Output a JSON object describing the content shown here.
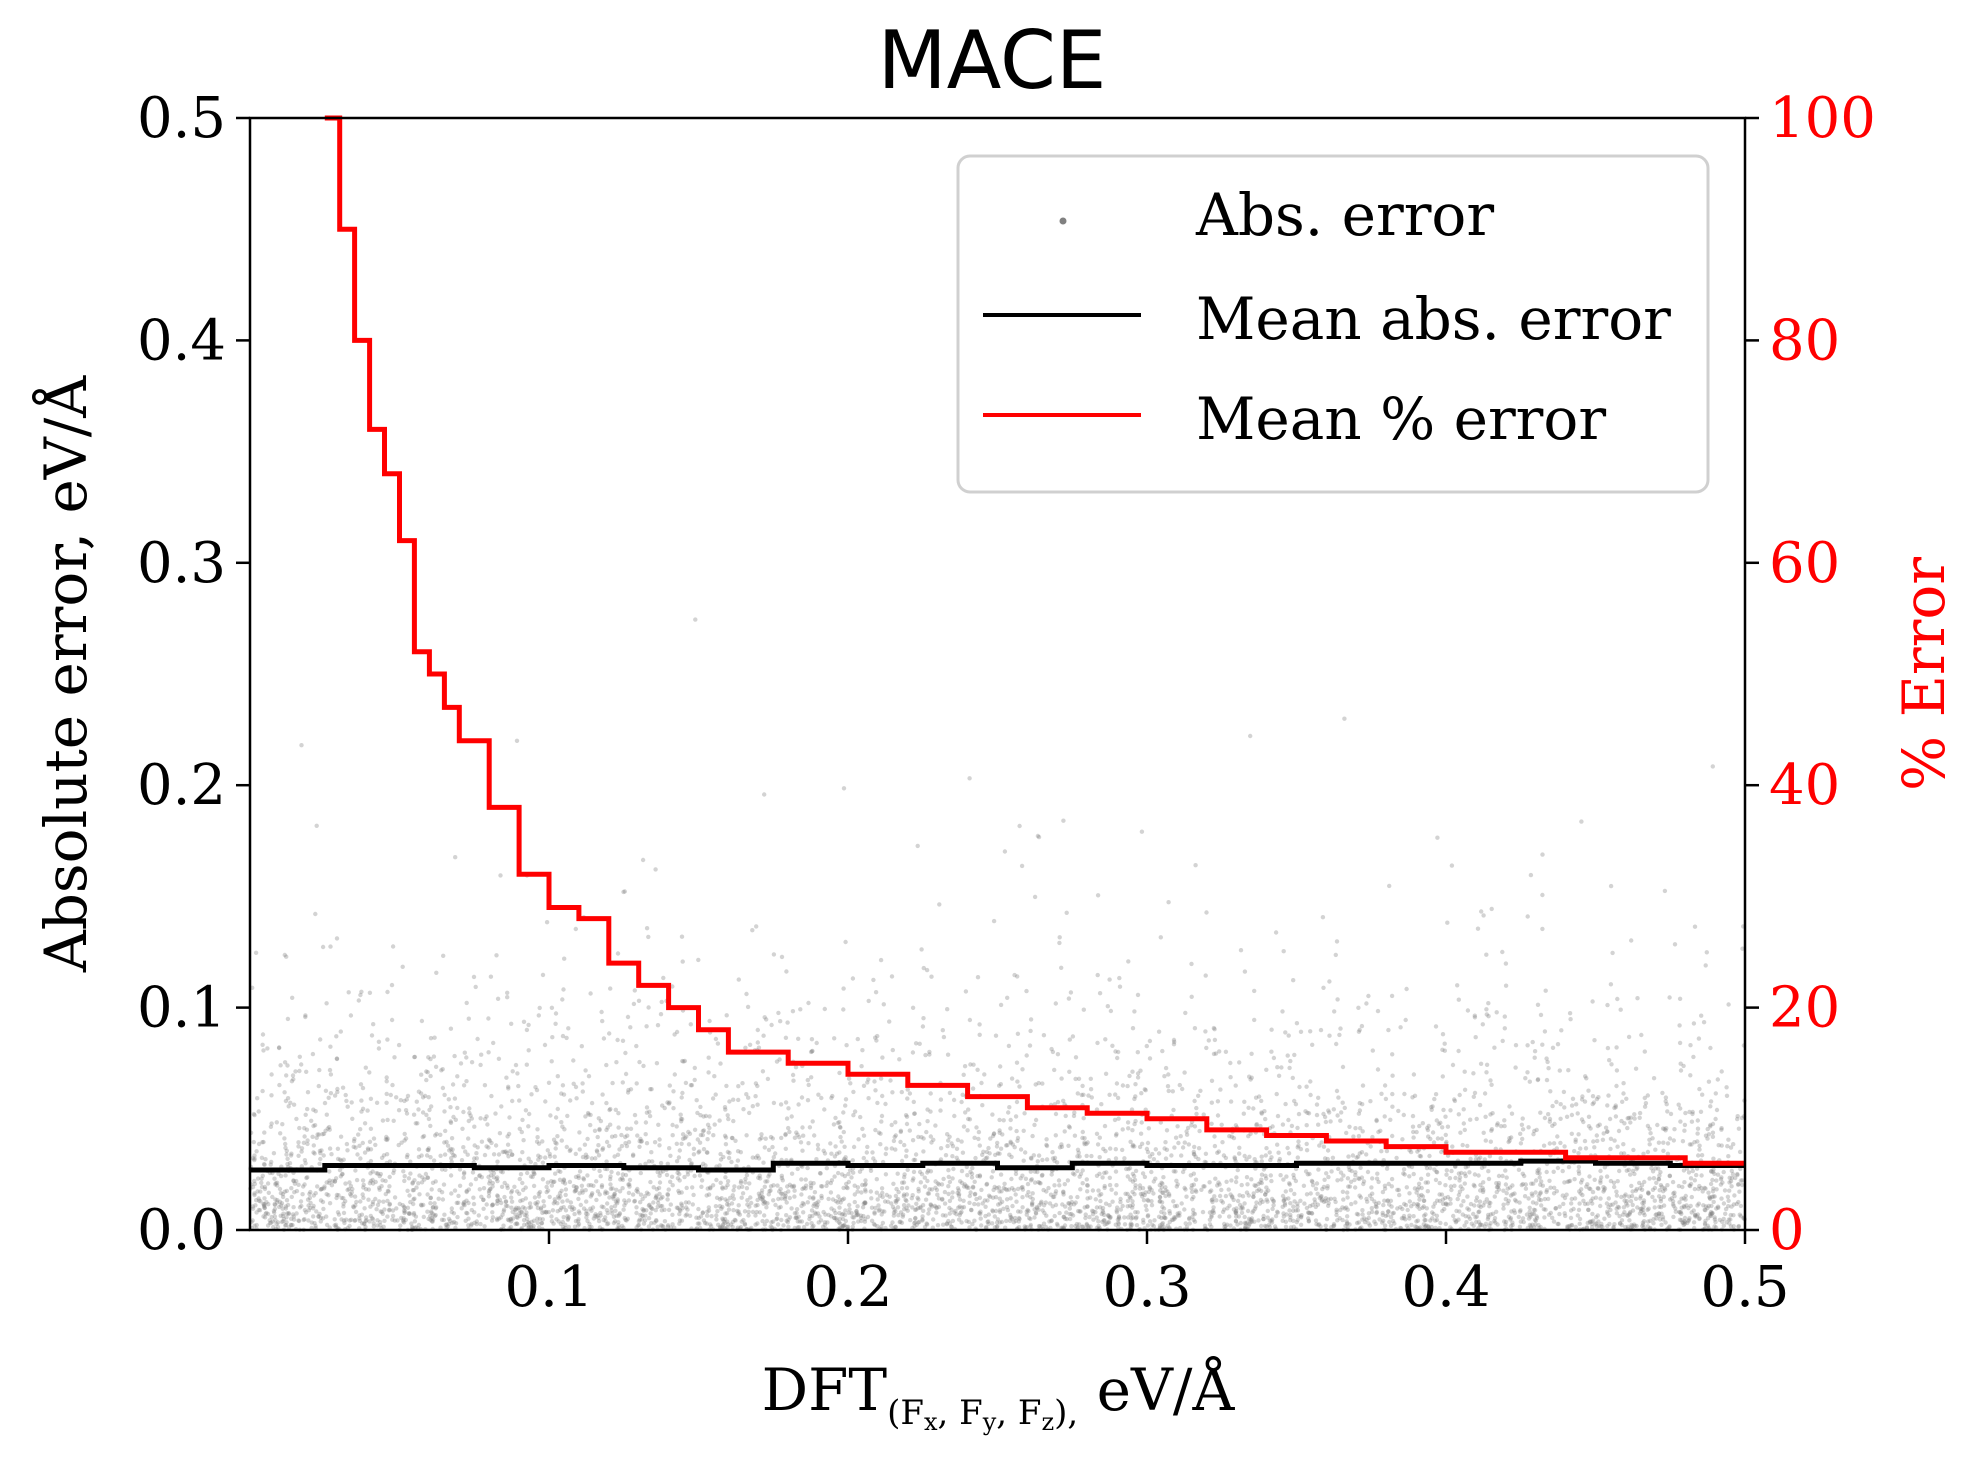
{
  "chart_data": {
    "type": "line",
    "title": "MACE",
    "xlabel": {
      "prefix": "DFT",
      "subscript_parts": [
        "(F",
        "x",
        ", F",
        "y",
        ", F",
        "z",
        "),"
      ],
      "suffix": " eV/Å"
    },
    "ylabel_left": "Absolute error,  eV/Å",
    "ylabel_right": "% Error",
    "xlim": [
      0.0,
      0.5
    ],
    "ylim_left": [
      0.0,
      0.5
    ],
    "ylim_right": [
      0,
      100
    ],
    "x_ticks": [
      {
        "value": 0.1,
        "label": "0.1"
      },
      {
        "value": 0.2,
        "label": "0.2"
      },
      {
        "value": 0.3,
        "label": "0.3"
      },
      {
        "value": 0.4,
        "label": "0.4"
      },
      {
        "value": 0.5,
        "label": "0.5"
      }
    ],
    "y_left_ticks": [
      {
        "value": 0.0,
        "label": "0.0"
      },
      {
        "value": 0.1,
        "label": "0.1"
      },
      {
        "value": 0.2,
        "label": "0.2"
      },
      {
        "value": 0.3,
        "label": "0.3"
      },
      {
        "value": 0.4,
        "label": "0.4"
      },
      {
        "value": 0.5,
        "label": "0.5"
      }
    ],
    "y_right_ticks": [
      {
        "value": 0,
        "label": "0"
      },
      {
        "value": 20,
        "label": "20"
      },
      {
        "value": 40,
        "label": "40"
      },
      {
        "value": 60,
        "label": "60"
      },
      {
        "value": 80,
        "label": "80"
      },
      {
        "value": 100,
        "label": "100"
      }
    ],
    "legend": {
      "placement": "top-right",
      "entries": [
        "Abs. error",
        "Mean abs. error",
        "Mean % error"
      ]
    },
    "colors": {
      "scatter": "#808080",
      "mean_abs": "#000000",
      "mean_pct": "#ff0000",
      "right_axis": "#ff0000"
    },
    "series": [
      {
        "name": "Mean abs. error",
        "axis": "left",
        "style": "step",
        "x": [
          0.0,
          0.025,
          0.05,
          0.075,
          0.1,
          0.125,
          0.15,
          0.175,
          0.2,
          0.225,
          0.25,
          0.275,
          0.3,
          0.325,
          0.35,
          0.375,
          0.4,
          0.425,
          0.45,
          0.475,
          0.5
        ],
        "y": [
          0.027,
          0.029,
          0.029,
          0.028,
          0.029,
          0.028,
          0.027,
          0.03,
          0.029,
          0.03,
          0.028,
          0.03,
          0.029,
          0.029,
          0.03,
          0.03,
          0.03,
          0.031,
          0.03,
          0.029,
          0.029
        ]
      },
      {
        "name": "Mean % error",
        "axis": "right",
        "style": "step",
        "x": [
          0.025,
          0.03,
          0.035,
          0.04,
          0.045,
          0.05,
          0.055,
          0.06,
          0.065,
          0.07,
          0.08,
          0.09,
          0.1,
          0.11,
          0.12,
          0.13,
          0.14,
          0.15,
          0.16,
          0.17,
          0.18,
          0.19,
          0.2,
          0.22,
          0.24,
          0.26,
          0.28,
          0.3,
          0.32,
          0.34,
          0.36,
          0.38,
          0.4,
          0.42,
          0.44,
          0.46,
          0.48,
          0.5
        ],
        "y": [
          100,
          90,
          80,
          72,
          68,
          62,
          52,
          50,
          47,
          44,
          38,
          32,
          29,
          28,
          24,
          22,
          20,
          18,
          16,
          16,
          15,
          15,
          14,
          13,
          12,
          11,
          10.5,
          10,
          9,
          8.5,
          8,
          7.5,
          7,
          7,
          6.5,
          6.5,
          6,
          6
        ]
      }
    ]
  }
}
